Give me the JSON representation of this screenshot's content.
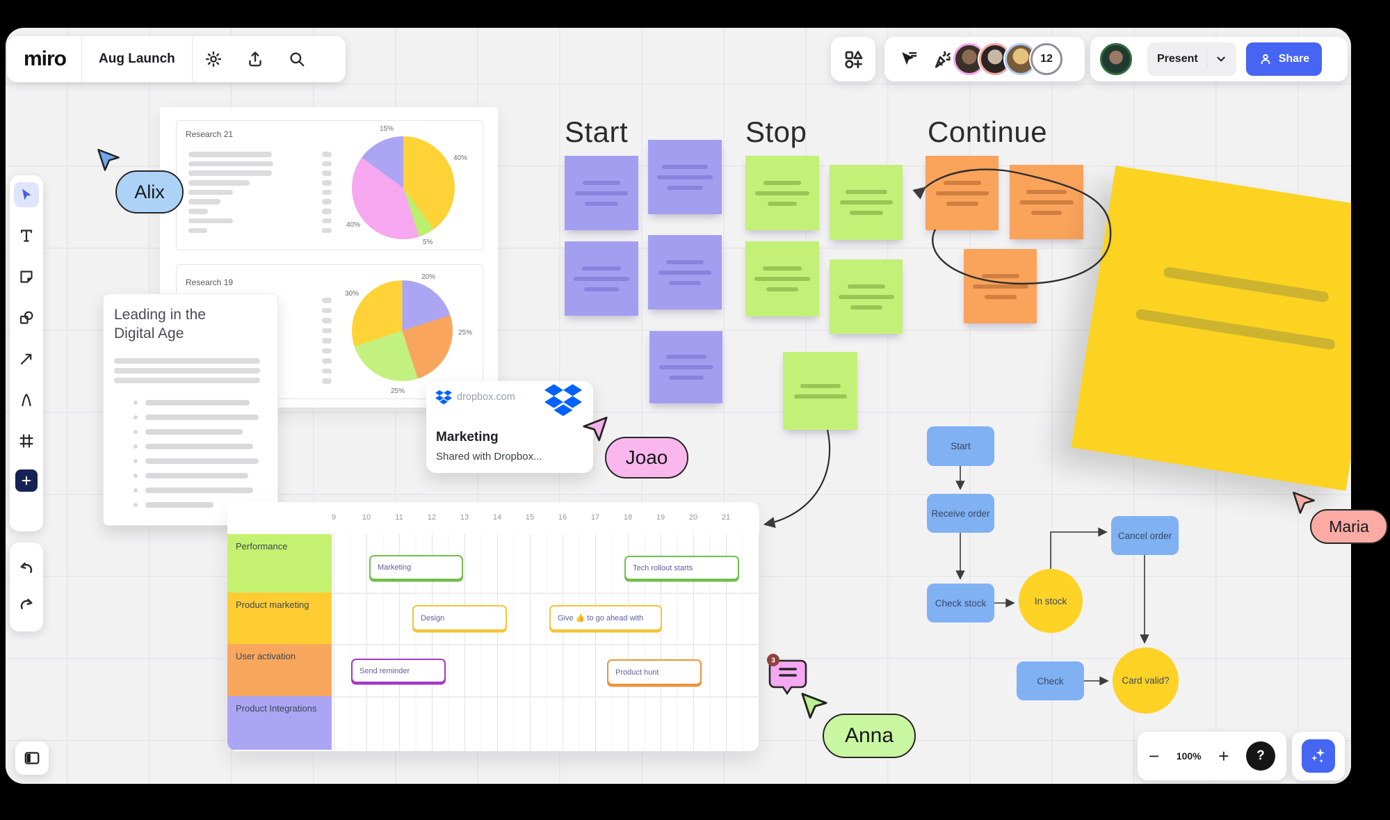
{
  "header": {
    "logo": "miro",
    "board_title": "Aug Launch",
    "present_label": "Present",
    "share_label": "Share",
    "collaborator_count": "12"
  },
  "board": {
    "column_titles": {
      "start": "Start",
      "stop": "Stop",
      "continue": "Continue"
    }
  },
  "research_cards": [
    {
      "title": "Research 21"
    },
    {
      "title": "Research 19"
    }
  ],
  "leading_card": {
    "title_line1": "Leading in the",
    "title_line2": "Digital Age"
  },
  "dropbox_card": {
    "domain": "dropbox.com",
    "title": "Marketing",
    "subtitle": "Shared with Dropbox..."
  },
  "gantt": {
    "columns": [
      "9",
      "10",
      "11",
      "12",
      "13",
      "14",
      "15",
      "16",
      "17",
      "18",
      "19",
      "20",
      "21"
    ],
    "lanes": [
      {
        "label": "Performance",
        "color": "#C5F170"
      },
      {
        "label": "Product marketing",
        "color": "#FFCC32"
      },
      {
        "label": "User activation",
        "color": "#FAA75E"
      },
      {
        "label": "Product Integrations",
        "color": "#ABA5F4"
      }
    ],
    "bars": [
      {
        "label": "Marketing",
        "color": "#71BE4D"
      },
      {
        "label": "Design",
        "color": "#F4C43B"
      },
      {
        "label": "Give 👍 to go ahead with",
        "color": "#F4C43B"
      },
      {
        "label": "Tech rollout starts",
        "color": "#71BE4D"
      },
      {
        "label": "Send reminder",
        "color": "#A438C8"
      },
      {
        "label": "Product hunt",
        "color": "#EC9338"
      }
    ]
  },
  "flowchart": {
    "nodes": [
      {
        "label": "Start",
        "type": "process"
      },
      {
        "label": "Receive order",
        "type": "process"
      },
      {
        "label": "Check stock",
        "type": "process"
      },
      {
        "label": "In stock",
        "type": "state"
      },
      {
        "label": "Cancel order",
        "type": "process"
      },
      {
        "label": "Check",
        "type": "process"
      },
      {
        "label": "Card valid?",
        "type": "state"
      }
    ]
  },
  "cursors": [
    {
      "name": "Alix",
      "color": "#ACD2F8"
    },
    {
      "name": "Joao",
      "color": "#F9B7EE"
    },
    {
      "name": "Anna",
      "color": "#C9F7A1"
    },
    {
      "name": "Maria",
      "color": "#FBABA4"
    }
  ],
  "comment": {
    "badge_count": "3"
  },
  "controls": {
    "zoom_level": "100%",
    "help_label": "?"
  },
  "chart_data": [
    {
      "type": "pie",
      "title": "Research 21",
      "slices": [
        {
          "label": "40%",
          "value": 40,
          "color": "#FFD337"
        },
        {
          "label": "5%",
          "value": 5,
          "color": "#BBEF70"
        },
        {
          "label": "40%",
          "value": 40,
          "color": "#F6A7EF"
        },
        {
          "label": "15%",
          "value": 15,
          "color": "#ABA5F3"
        }
      ]
    },
    {
      "type": "pie",
      "title": "Research 19",
      "slices": [
        {
          "label": "20%",
          "value": 20,
          "color": "#ABA5F3"
        },
        {
          "label": "25%",
          "value": 25,
          "color": "#FAA55E"
        },
        {
          "label": "25%",
          "value": 25,
          "color": "#C3F17F"
        },
        {
          "label": "30%",
          "value": 30,
          "color": "#FFD337"
        }
      ]
    },
    {
      "type": "table",
      "title": "Roadmap timeline",
      "columns": [
        "9",
        "10",
        "11",
        "12",
        "13",
        "14",
        "15",
        "16",
        "17",
        "18",
        "19",
        "20",
        "21"
      ],
      "rows": [
        {
          "lane": "Performance",
          "bars": [
            {
              "label": "Marketing",
              "start": 10.1,
              "end": 13.0
            },
            {
              "label": "Tech rollout starts",
              "start": 17.9,
              "end": 21.4
            }
          ]
        },
        {
          "lane": "Product marketing",
          "bars": [
            {
              "label": "Design",
              "start": 11.4,
              "end": 14.3
            },
            {
              "label": "Give 👍 to go ahead with",
              "start": 15.6,
              "end": 19.0
            }
          ]
        },
        {
          "lane": "User activation",
          "bars": [
            {
              "label": "Send reminder",
              "start": 9.5,
              "end": 12.4
            },
            {
              "label": "Product hunt",
              "start": 17.4,
              "end": 20.3
            }
          ]
        },
        {
          "lane": "Product Integrations",
          "bars": []
        }
      ]
    }
  ]
}
